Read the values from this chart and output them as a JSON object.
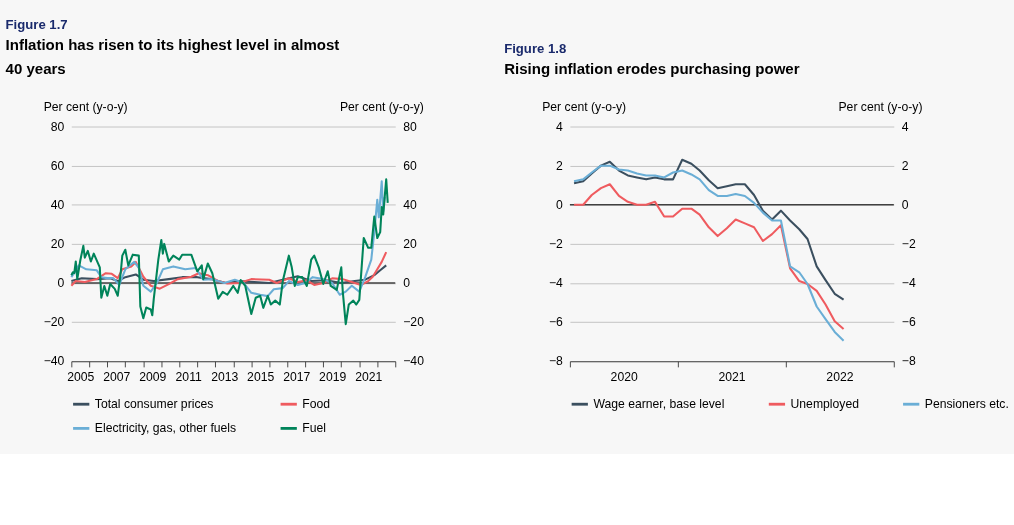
{
  "chart_data": [
    {
      "type": "line",
      "title": "Figure 1.7",
      "subtitle": "Inflation has risen to its highest level in almost 40 years",
      "ylabel": "Per cent (y-o-y)",
      "y2label": "Per cent (y-o-y)",
      "xlim": [
        "2005-01",
        "2023-01"
      ],
      "xticks": [
        {
          "value": "2005-01",
          "label": null
        },
        {
          "value": "2005-07",
          "label": "2005"
        },
        {
          "value": "2006-01",
          "label": null
        },
        {
          "value": "2007-01",
          "label": null
        },
        {
          "value": "2007-07",
          "label": "2007"
        },
        {
          "value": "2008-01",
          "label": null
        },
        {
          "value": "2009-01",
          "label": null
        },
        {
          "value": "2009-07",
          "label": "2009"
        },
        {
          "value": "2010-01",
          "label": null
        },
        {
          "value": "2011-01",
          "label": null
        },
        {
          "value": "2011-07",
          "label": "2011"
        },
        {
          "value": "2012-01",
          "label": null
        },
        {
          "value": "2013-01",
          "label": null
        },
        {
          "value": "2013-07",
          "label": "2013"
        },
        {
          "value": "2014-01",
          "label": null
        },
        {
          "value": "2015-01",
          "label": null
        },
        {
          "value": "2015-07",
          "label": "2015"
        },
        {
          "value": "2016-01",
          "label": null
        },
        {
          "value": "2017-01",
          "label": null
        },
        {
          "value": "2017-07",
          "label": "2017"
        },
        {
          "value": "2018-01",
          "label": null
        },
        {
          "value": "2019-01",
          "label": null
        },
        {
          "value": "2019-07",
          "label": "2019"
        },
        {
          "value": "2020-01",
          "label": null
        },
        {
          "value": "2021-01",
          "label": null
        },
        {
          "value": "2021-07",
          "label": "2021"
        },
        {
          "value": "2022-01",
          "label": null
        },
        {
          "value": "2023-01",
          "label": null
        }
      ],
      "ylim": [
        -40,
        80
      ],
      "yticks": [
        -40,
        -20,
        0,
        20,
        40,
        60,
        80
      ],
      "y2lim": [
        -40,
        80
      ],
      "y2ticks": [
        -40,
        -20,
        0,
        20,
        40,
        60,
        80
      ],
      "grid": "y",
      "legend": "bottom",
      "line_style": "solid",
      "ref_lines": [
        {
          "axis": "y2",
          "value": 0,
          "color": "#404040"
        }
      ],
      "series": [
        {
          "name": "Total consumer prices",
          "color": "#3b4f5f",
          "x": [
            "2005-01",
            "2005-08",
            "2006-06",
            "2007-03",
            "2007-08",
            "2008-01",
            "2008-08",
            "2009-01",
            "2009-08",
            "2010-06",
            "2011-03",
            "2012-01",
            "2012-10",
            "2013-08",
            "2014-05",
            "2015-03",
            "2016-01",
            "2016-10",
            "2017-08",
            "2018-05",
            "2019-03",
            "2020-01",
            "2020-10",
            "2021-05",
            "2021-11",
            "2022-03",
            "2022-07"
          ],
          "values": [
            1,
            2.4,
            2,
            2.4,
            1,
            3,
            4.4,
            1.7,
            1,
            2,
            3,
            3,
            2,
            0,
            1,
            0.5,
            0,
            1.7,
            3.5,
            1,
            1.4,
            0,
            1,
            1.7,
            4,
            6.5,
            9
          ]
        },
        {
          "name": "Food",
          "color": "#ef5b5f",
          "x": [
            "2005-01",
            "2005-04",
            "2005-10",
            "2006-06",
            "2006-12",
            "2007-04",
            "2007-08",
            "2007-11",
            "2008-05",
            "2008-08",
            "2009-01",
            "2009-06",
            "2009-12",
            "2010-06",
            "2010-12",
            "2011-09",
            "2012-02",
            "2012-08",
            "2013-03",
            "2013-09",
            "2014-05",
            "2015-01",
            "2016-01",
            "2016-06",
            "2017-02",
            "2017-08",
            "2018-02",
            "2018-07",
            "2019-01",
            "2019-07",
            "2020-02",
            "2020-08",
            "2021-02",
            "2021-07",
            "2021-10",
            "2022-01",
            "2022-04",
            "2022-07"
          ],
          "values": [
            -1.4,
            1,
            0.5,
            2,
            5,
            4.7,
            2.5,
            7,
            8.5,
            10.8,
            3.2,
            -1.4,
            -2.9,
            -0.6,
            2,
            3.2,
            5,
            4,
            1,
            -0.2,
            0,
            2,
            1.7,
            0,
            2.4,
            0.5,
            1.4,
            -1,
            0,
            2.4,
            2,
            0.5,
            -1,
            1,
            3.2,
            7,
            10.8,
            15.8
          ]
        },
        {
          "name": "Electricity, gas, other fuels",
          "color": "#6aaed6",
          "x": [
            "2005-01",
            "2005-06",
            "2005-11",
            "2006-06",
            "2006-09",
            "2007-01",
            "2007-05",
            "2007-09",
            "2008-01",
            "2008-07",
            "2008-10",
            "2009-01",
            "2009-06",
            "2009-10",
            "2010-02",
            "2010-09",
            "2011-05",
            "2011-12",
            "2012-05",
            "2012-11",
            "2013-07",
            "2014-02",
            "2014-08",
            "2015-01",
            "2015-07",
            "2015-12",
            "2016-04",
            "2016-10",
            "2017-02",
            "2017-08",
            "2018-01",
            "2018-06",
            "2019-01",
            "2019-07",
            "2019-12",
            "2020-04",
            "2020-08",
            "2021-01",
            "2021-05",
            "2021-09",
            "2021-11",
            "2022-01",
            "2022-02",
            "2022-04",
            "2022-05",
            "2022-06"
          ],
          "values": [
            3,
            9,
            7,
            6.5,
            3,
            2.5,
            2.5,
            -1,
            7,
            10.8,
            7.7,
            -1.4,
            -4.4,
            0,
            7,
            8.5,
            7,
            7.7,
            1.7,
            2,
            0,
            1.7,
            0,
            -5,
            -6,
            -6.7,
            -3.2,
            -2.6,
            1,
            -1,
            0,
            3,
            2,
            0,
            -6,
            -4.4,
            -1.4,
            -4.4,
            3,
            12,
            26,
            42.6,
            33.6,
            52,
            36.6,
            44
          ]
        },
        {
          "name": "Fuel",
          "color": "#00845a",
          "x": [
            "2005-01",
            "2005-02",
            "2005-03",
            "2005-04",
            "2005-05",
            "2005-07",
            "2005-09",
            "2005-10",
            "2005-12",
            "2006-02",
            "2006-04",
            "2006-08",
            "2006-09",
            "2006-11",
            "2007-01",
            "2007-03",
            "2007-06",
            "2007-08",
            "2007-10",
            "2007-11",
            "2008-01",
            "2008-03",
            "2008-06",
            "2008-10",
            "2008-11",
            "2009-01",
            "2009-03",
            "2009-06",
            "2009-07",
            "2009-08",
            "2009-11",
            "2010-01",
            "2010-02",
            "2010-03",
            "2010-06",
            "2010-09",
            "2011-01",
            "2011-03",
            "2011-09",
            "2012-01",
            "2012-04",
            "2012-05",
            "2012-08",
            "2012-11",
            "2013-03",
            "2013-06",
            "2013-09",
            "2014-01",
            "2014-04",
            "2014-06",
            "2014-09",
            "2015-01",
            "2015-04",
            "2015-07",
            "2015-09",
            "2015-12",
            "2016-02",
            "2016-05",
            "2016-08",
            "2016-10",
            "2017-02",
            "2017-04",
            "2017-06",
            "2017-08",
            "2017-11",
            "2018-02",
            "2018-05",
            "2018-07",
            "2018-10",
            "2019-01",
            "2019-04",
            "2019-06",
            "2019-10",
            "2020-01",
            "2020-02",
            "2020-04",
            "2020-06",
            "2020-09",
            "2020-11",
            "2021-01",
            "2021-04",
            "2021-07",
            "2021-09",
            "2021-11",
            "2022-01",
            "2022-03",
            "2022-04",
            "2022-05",
            "2022-07",
            "2022-08"
          ],
          "values": [
            4,
            5.5,
            5,
            11,
            2,
            11.5,
            19,
            13,
            16.4,
            11,
            15,
            8,
            -7.5,
            -1.5,
            -6.5,
            -0.5,
            -3,
            -6.5,
            5.5,
            14,
            17,
            9,
            14.5,
            14,
            -12,
            -18,
            -12.5,
            -13.5,
            -16.5,
            -8,
            12,
            22,
            15,
            20,
            11,
            14,
            12,
            14.5,
            14.5,
            6,
            9,
            2,
            10,
            5,
            -8,
            -4.5,
            -6,
            -1.5,
            -5,
            1.5,
            -1.5,
            -15.8,
            -7.5,
            -6.5,
            -12.7,
            -6.5,
            -11,
            -9,
            -11,
            1,
            14,
            8,
            -1.5,
            3,
            3,
            -1.5,
            12,
            14,
            8,
            -0.5,
            6,
            -1.5,
            -3.5,
            8,
            -4.5,
            -21,
            -11,
            -9,
            -11,
            -8.6,
            23,
            18,
            18,
            34,
            23,
            26,
            38.8,
            35,
            53,
            41
          ]
        }
      ]
    },
    {
      "type": "line",
      "title": "Figure 1.8",
      "subtitle": "Rising inflation erodes purchasing power",
      "ylabel": "Per cent (y-o-y)",
      "y2label": "Per cent (y-o-y)",
      "xlim": [
        "2020-01",
        "2023-01"
      ],
      "xticks": [
        {
          "value": "2020-01",
          "label": null
        },
        {
          "value": "2020-07",
          "label": "2020"
        },
        {
          "value": "2021-01",
          "label": null
        },
        {
          "value": "2021-07",
          "label": "2021"
        },
        {
          "value": "2022-01",
          "label": null
        },
        {
          "value": "2022-07",
          "label": "2022"
        },
        {
          "value": "2023-01",
          "label": null
        }
      ],
      "ylim": [
        -8,
        4
      ],
      "yticks": [
        -8,
        -6,
        -4,
        -2,
        0,
        2,
        4
      ],
      "y2lim": [
        -8,
        4
      ],
      "y2ticks": [
        -8,
        -6,
        -4,
        -2,
        0,
        2,
        4
      ],
      "grid": "y",
      "legend": "bottom",
      "line_style": "solid",
      "ref_lines": [
        {
          "axis": "y2",
          "value": 0,
          "color": "#404040"
        }
      ],
      "x": [
        "2020-01-15",
        "2020-02-15",
        "2020-03-15",
        "2020-04-15",
        "2020-05-15",
        "2020-06-15",
        "2020-07-15",
        "2020-08-15",
        "2020-09-15",
        "2020-10-15",
        "2020-11-15",
        "2020-12-15",
        "2021-01-15",
        "2021-02-15",
        "2021-03-15",
        "2021-04-15",
        "2021-05-15",
        "2021-06-15",
        "2021-07-15",
        "2021-08-15",
        "2021-09-15",
        "2021-10-15",
        "2021-11-15",
        "2021-12-15",
        "2022-01-15",
        "2022-02-15",
        "2022-03-15",
        "2022-04-15",
        "2022-05-15",
        "2022-06-15",
        "2022-07-15"
      ],
      "series": [
        {
          "name": "Wage earner, base level",
          "color": "#3b4f5f",
          "values": [
            1.1,
            1.2,
            1.6,
            2.0,
            2.2,
            1.75,
            1.5,
            1.4,
            1.3,
            1.4,
            1.3,
            1.3,
            2.3,
            2.1,
            1.75,
            1.25,
            0.85,
            0.95,
            1.05,
            1.05,
            0.5,
            -0.3,
            -0.75,
            -0.3,
            -0.8,
            -1.25,
            -1.75,
            -3.15,
            -3.85,
            -4.55,
            -4.85
          ]
        },
        {
          "name": "Unemployed",
          "color": "#ef5b5f",
          "values": [
            0,
            0,
            0.5,
            0.85,
            1.05,
            0.45,
            0.15,
            0,
            0,
            0.15,
            -0.6,
            -0.6,
            -0.2,
            -0.2,
            -0.5,
            -1.15,
            -1.6,
            -1.2,
            -0.75,
            -0.95,
            -1.15,
            -1.85,
            -1.5,
            -1.05,
            -3.25,
            -3.9,
            -4.05,
            -4.4,
            -5.1,
            -5.95,
            -6.35
          ]
        },
        {
          "name": "Pensioners etc.",
          "color": "#6aaed6",
          "values": [
            1.2,
            1.3,
            1.65,
            2.0,
            2.0,
            1.8,
            1.75,
            1.6,
            1.5,
            1.5,
            1.4,
            1.65,
            1.75,
            1.55,
            1.3,
            0.75,
            0.45,
            0.45,
            0.55,
            0.45,
            0.1,
            -0.4,
            -0.8,
            -0.8,
            -3.15,
            -3.45,
            -4.05,
            -5.2,
            -5.85,
            -6.5,
            -6.95
          ]
        }
      ]
    }
  ]
}
